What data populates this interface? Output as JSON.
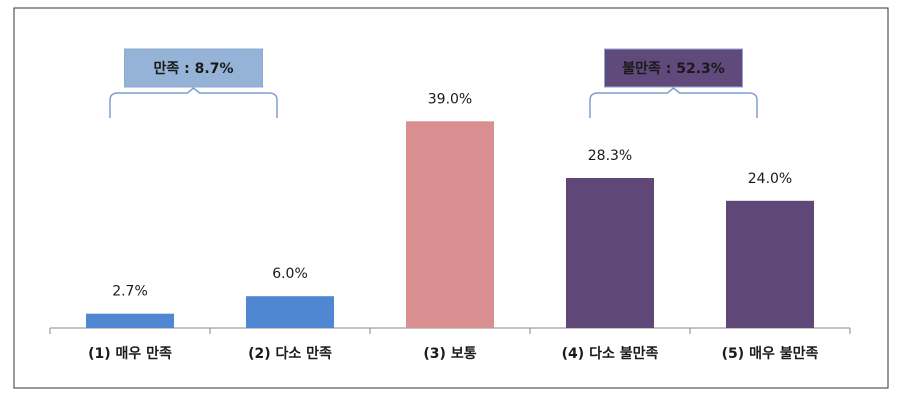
{
  "chart_data": {
    "type": "bar",
    "categories": [
      "(1) 매우 만족",
      "(2) 다소 만족",
      "(3) 보통",
      "(4) 다소 불만족",
      "(5) 매우 불만족"
    ],
    "values": [
      2.7,
      6.0,
      39.0,
      28.3,
      24.0
    ],
    "value_labels": [
      "2.7%",
      "6.0%",
      "39.0%",
      "28.3%",
      "24.0%"
    ],
    "colors": [
      "#4f87d2",
      "#4f87d2",
      "#d98f8f",
      "#5f4878",
      "#5f4878"
    ],
    "ylim": [
      0,
      40
    ],
    "annotations": [
      {
        "text": "만족 : 8.7%",
        "color": "#95b3d7",
        "text_color": "#1a1a1a"
      },
      {
        "text": "불만족 : 52.3%",
        "color": "#604a7b",
        "text_color": "#ffffff"
      }
    ]
  }
}
